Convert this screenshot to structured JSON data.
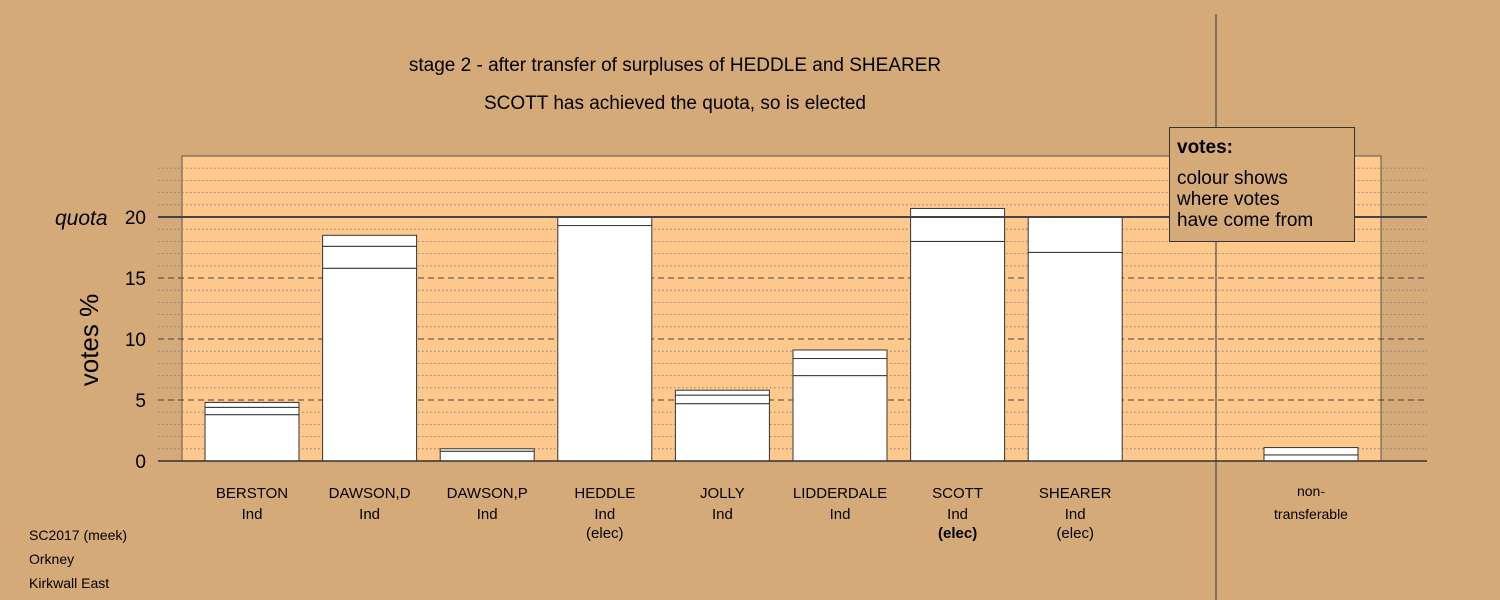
{
  "title_line1": "stage 2 - after transfer of surpluses of HEDDLE and SHEARER",
  "title_line2": "SCOTT has achieved the quota, so is elected",
  "ylabel": "votes %",
  "quota_label": "quota",
  "legend": {
    "title": "votes:",
    "lines": [
      "colour shows",
      "where votes",
      "have come from"
    ]
  },
  "info": {
    "line1": "SC2017 (meek)",
    "line2": "Orkney",
    "line3": "Kirkwall East"
  },
  "colors": {
    "background": "#d5aa79",
    "plot_fill": "#ffc98d",
    "bar_fill": "#ffffff"
  },
  "chart_data": {
    "type": "bar",
    "stacked": true,
    "ylabel": "votes %",
    "ylim": [
      0,
      25
    ],
    "yticks": [
      0,
      5,
      10,
      15,
      20
    ],
    "quota": 20,
    "grid": true,
    "categories": [
      {
        "name": "BERSTON",
        "party": "Ind",
        "status": "",
        "bold": false,
        "segments": [
          3.8,
          0.6,
          0.4
        ]
      },
      {
        "name": "DAWSON,D",
        "party": "Ind",
        "status": "",
        "bold": false,
        "segments": [
          15.8,
          1.8,
          0.9
        ]
      },
      {
        "name": "DAWSON,P",
        "party": "Ind",
        "status": "",
        "bold": false,
        "segments": [
          0.8,
          0.2
        ]
      },
      {
        "name": "HEDDLE",
        "party": "Ind",
        "status": "(elec)",
        "bold": false,
        "segments": [
          19.3,
          0.7
        ]
      },
      {
        "name": "JOLLY",
        "party": "Ind",
        "status": "",
        "bold": false,
        "segments": [
          4.7,
          0.7,
          0.4
        ]
      },
      {
        "name": "LIDDERDALE",
        "party": "Ind",
        "status": "",
        "bold": false,
        "segments": [
          7.0,
          1.4,
          0.7
        ]
      },
      {
        "name": "SCOTT",
        "party": "Ind",
        "status": "(elec)",
        "bold": true,
        "segments": [
          18.0,
          2.0,
          0.7
        ]
      },
      {
        "name": "SHEARER",
        "party": "Ind",
        "status": "(elec)",
        "bold": false,
        "segments": [
          17.1,
          2.9
        ]
      }
    ],
    "nontransferable": {
      "label_line1": "non-",
      "label_line2": "transferable",
      "segments": [
        0.5,
        0.6
      ]
    }
  }
}
